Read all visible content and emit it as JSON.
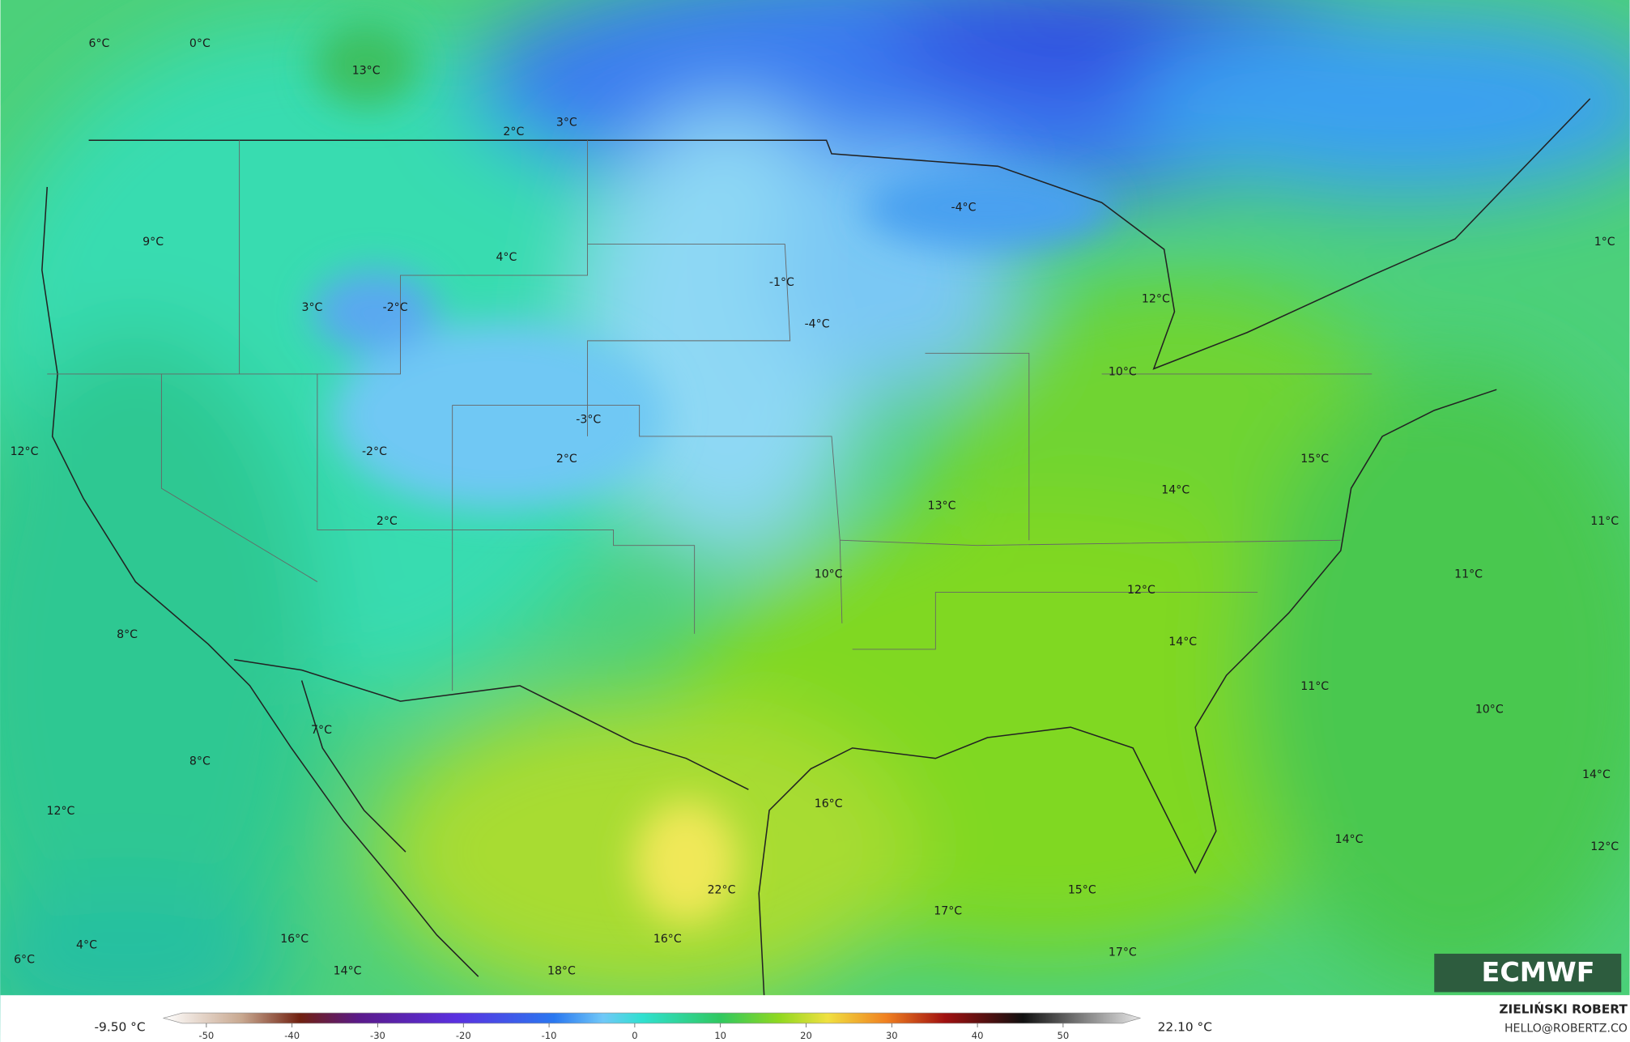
{
  "map": {
    "labels": [
      "6°C",
      "0°C",
      "13°C",
      "2°C",
      "3°C",
      "9°C",
      "4°C",
      "3°C",
      "-2°C",
      "-4°C",
      "-1°C",
      "-4°C",
      "12°C",
      "10°C",
      "1°C",
      "12°C",
      "-3°C",
      "-2°C",
      "2°C",
      "2°C",
      "15°C",
      "14°C",
      "13°C",
      "11°C",
      "10°C",
      "11°C",
      "12°C",
      "8°C",
      "14°C",
      "11°C",
      "10°C",
      "7°C",
      "8°C",
      "14°C",
      "16°C",
      "12°C",
      "14°C",
      "12°C",
      "22°C",
      "15°C",
      "17°C",
      "16°C",
      "16°C",
      "4°C",
      "6°C",
      "17°C",
      "14°C",
      "18°C"
    ],
    "colorbar": {
      "lim": [
        -55,
        59
      ],
      "ticks": [
        -50,
        -40,
        -30,
        -20,
        -10,
        0,
        10,
        20,
        30,
        40,
        50
      ]
    },
    "min_label": "-9.50 °C",
    "max_label": "22.10 °C"
  },
  "credit": {
    "name": "ZIELIŃSKI ROBERT",
    "email": "HELLO@ROBERTZ.CO"
  },
  "logo": "ECMWF"
}
